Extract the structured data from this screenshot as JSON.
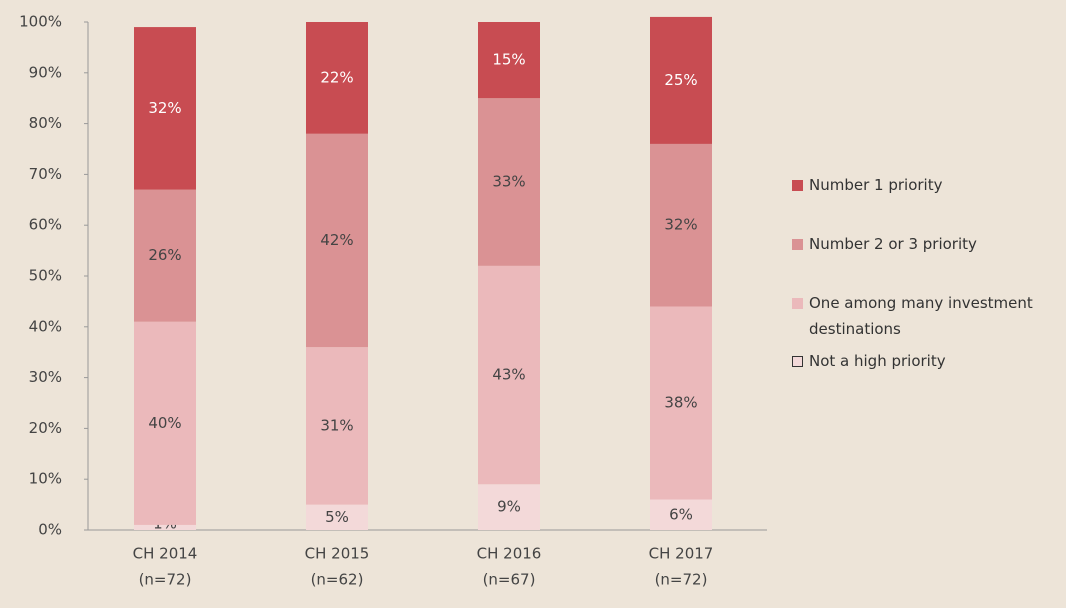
{
  "chart_data": {
    "type": "stacked_bar",
    "categories": [
      [
        "CH 2014",
        "(n=72)"
      ],
      [
        "CH 2015",
        "(n=62)"
      ],
      [
        "CH 2016",
        "(n=67)"
      ],
      [
        "CH 2017",
        "(n=72)"
      ]
    ],
    "series": [
      {
        "name": "Not a high priority",
        "color": "#f3d9d9",
        "values": [
          1,
          5,
          9,
          6
        ],
        "value_labels": [
          "1%",
          "5%",
          "9%",
          "6%"
        ]
      },
      {
        "name": "One among many investment destinations",
        "color": "#ebb9bb",
        "values": [
          40,
          31,
          43,
          38
        ],
        "value_labels": [
          "40%",
          "31%",
          "43%",
          "38%"
        ]
      },
      {
        "name": "Number 2 or 3 priority",
        "color": "#da9294",
        "values": [
          26,
          42,
          33,
          32
        ],
        "value_labels": [
          "26%",
          "42%",
          "33%",
          "32%"
        ]
      },
      {
        "name": "Number 1 priority",
        "color": "#c84c52",
        "values": [
          32,
          22,
          15,
          25
        ],
        "value_labels": [
          "32%",
          "22%",
          "15%",
          "25%"
        ]
      }
    ],
    "ylim": [
      0,
      100
    ],
    "yticks": [
      {
        "value": 0,
        "label": "0%"
      },
      {
        "value": 10,
        "label": "10%"
      },
      {
        "value": 20,
        "label": "20%"
      },
      {
        "value": 30,
        "label": "30%"
      },
      {
        "value": 40,
        "label": "40%"
      },
      {
        "value": 50,
        "label": "50%"
      },
      {
        "value": 60,
        "label": "60%"
      },
      {
        "value": 70,
        "label": "70%"
      },
      {
        "value": 80,
        "label": "80%"
      },
      {
        "value": 90,
        "label": "90%"
      },
      {
        "value": 100,
        "label": "100%"
      }
    ],
    "grid": false,
    "legend": "right"
  }
}
